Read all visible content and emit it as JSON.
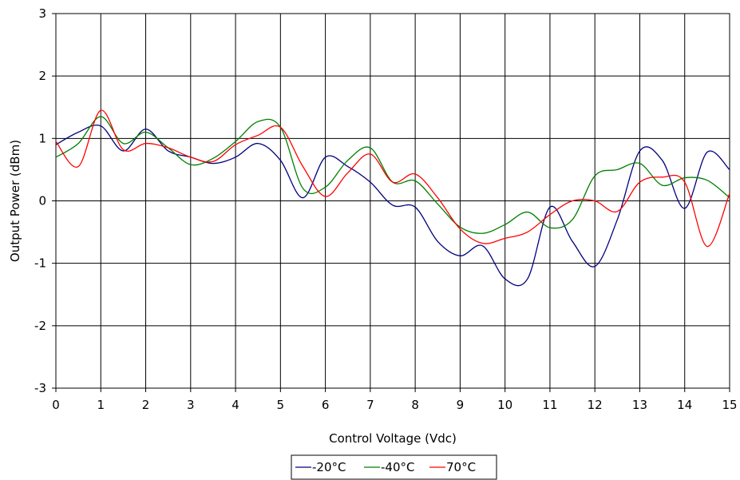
{
  "chart_data": {
    "type": "line",
    "title": "",
    "xlabel": "Control Voltage (Vdc)",
    "ylabel": "Output Power (dBm)",
    "xlim": [
      0,
      15
    ],
    "ylim": [
      -3,
      3
    ],
    "x_ticks": [
      "0",
      "1",
      "2",
      "3",
      "4",
      "5",
      "6",
      "7",
      "8",
      "9",
      "10",
      "11",
      "12",
      "13",
      "14",
      "15"
    ],
    "y_ticks": [
      "-3",
      "-2",
      "-1",
      "0",
      "1",
      "2",
      "3"
    ],
    "grid": true,
    "legend_position": "bottom",
    "series": [
      {
        "name": "-20°C",
        "color": "#00007f",
        "x": [
          0,
          0.5,
          1,
          1.5,
          2,
          2.5,
          3,
          3.5,
          4,
          4.5,
          5,
          5.5,
          6,
          6.5,
          7,
          7.5,
          8,
          8.5,
          9,
          9.5,
          10,
          10.5,
          11,
          11.5,
          12,
          12.5,
          13,
          13.5,
          14,
          14.5,
          15
        ],
        "y": [
          0.9,
          1.1,
          1.2,
          0.8,
          1.15,
          0.8,
          0.7,
          0.6,
          0.7,
          0.92,
          0.65,
          0.05,
          0.7,
          0.55,
          0.3,
          -0.07,
          -0.1,
          -0.65,
          -0.88,
          -0.72,
          -1.25,
          -1.25,
          -0.1,
          -0.65,
          -1.05,
          -0.3,
          0.8,
          0.65,
          -0.12,
          0.78,
          0.5
        ]
      },
      {
        "name": "-40°C",
        "color": "#008000",
        "x": [
          0,
          0.5,
          1,
          1.5,
          2,
          2.5,
          3,
          3.5,
          4,
          4.5,
          5,
          5.5,
          6,
          6.5,
          7,
          7.5,
          8,
          8.5,
          9,
          9.5,
          10,
          10.5,
          11,
          11.5,
          12,
          12.5,
          13,
          13.5,
          14,
          14.5,
          15
        ],
        "y": [
          0.7,
          0.92,
          1.35,
          0.92,
          1.1,
          0.85,
          0.58,
          0.68,
          0.95,
          1.27,
          1.18,
          0.2,
          0.22,
          0.65,
          0.85,
          0.3,
          0.32,
          -0.05,
          -0.42,
          -0.52,
          -0.38,
          -0.18,
          -0.43,
          -0.3,
          0.4,
          0.5,
          0.6,
          0.25,
          0.37,
          0.33,
          0.05
        ]
      },
      {
        "name": "70°C",
        "color": "#ff0000",
        "x": [
          0,
          0.5,
          1,
          1.5,
          2,
          2.5,
          3,
          3.5,
          4,
          4.5,
          5,
          5.5,
          6,
          6.5,
          7,
          7.5,
          8,
          8.5,
          9,
          9.5,
          10,
          10.5,
          11,
          11.5,
          12,
          12.5,
          13,
          13.5,
          14,
          14.5,
          15
        ],
        "y": [
          0.95,
          0.55,
          1.45,
          0.82,
          0.92,
          0.85,
          0.7,
          0.63,
          0.9,
          1.05,
          1.18,
          0.55,
          0.07,
          0.45,
          0.75,
          0.3,
          0.43,
          0.05,
          -0.45,
          -0.68,
          -0.6,
          -0.5,
          -0.22,
          0.0,
          0.0,
          -0.17,
          0.3,
          0.38,
          0.3,
          -0.73,
          0.12
        ]
      }
    ]
  }
}
